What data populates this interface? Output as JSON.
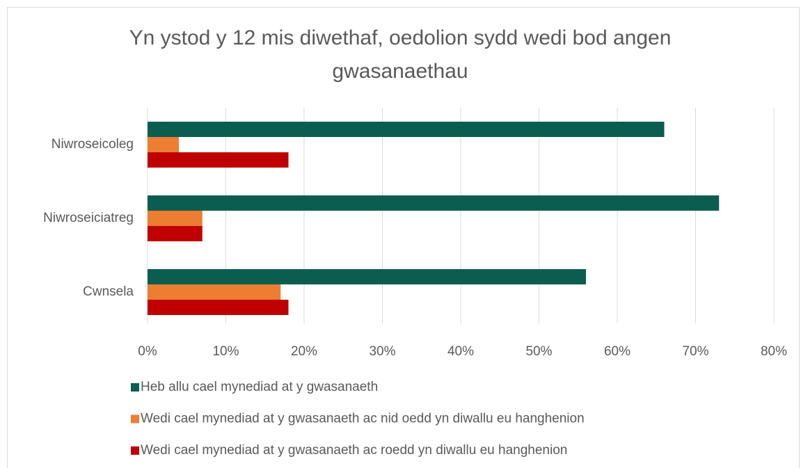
{
  "chart_data": {
    "type": "bar",
    "orientation": "horizontal",
    "title": "Yn ystod y 12 mis diwethaf, oedolion sydd wedi bod angen gwasanaethau",
    "categories": [
      "Niwroseicoleg",
      "Niwroseiciatreg",
      "Cwnsela"
    ],
    "series": [
      {
        "name": "Heb allu cael mynediad at y gwasanaeth",
        "color": "#0b5e4f",
        "values": [
          66,
          73,
          56
        ]
      },
      {
        "name": "Wedi cael mynediad at y gwasanaeth ac nid oedd yn diwallu eu hanghenion",
        "color": "#ed7d31",
        "values": [
          4,
          7,
          17
        ]
      },
      {
        "name": "Wedi cael mynediad at y gwasanaeth ac roedd yn diwallu eu hanghenion",
        "color": "#c00000",
        "values": [
          18,
          7,
          18
        ]
      }
    ],
    "xlim": [
      0,
      80
    ],
    "xticks": [
      {
        "value": 0,
        "label": "0%"
      },
      {
        "value": 10,
        "label": "10%"
      },
      {
        "value": 20,
        "label": "20%"
      },
      {
        "value": 30,
        "label": "30%"
      },
      {
        "value": 40,
        "label": "40%"
      },
      {
        "value": 50,
        "label": "50%"
      },
      {
        "value": 60,
        "label": "60%"
      },
      {
        "value": 70,
        "label": "70%"
      },
      {
        "value": 80,
        "label": "80%"
      }
    ],
    "grid": true,
    "legend": "bottom"
  }
}
